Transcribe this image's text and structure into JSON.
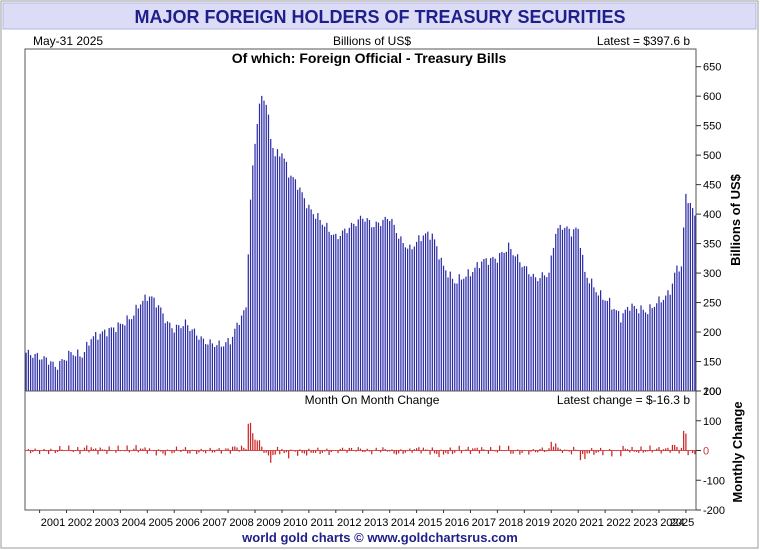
{
  "header": {
    "title": "MAJOR FOREIGN HOLDERS OF TREASURY SECURITIES",
    "date": "May-31  2025",
    "units": "Billions of US$",
    "latest": "Latest = $397.6 b"
  },
  "footer": {
    "credit": "world gold charts © www.goldchartsrus.com"
  },
  "colors": {
    "bars": "#2b2ba8",
    "change_bars": "#cc2222",
    "title_bg": "#dcdcf7",
    "title_text": "#1f1f8a",
    "zero_label": "#cc3333"
  },
  "chart_data": [
    {
      "type": "bar",
      "title": "Of which: Foreign Official - Treasury Bills",
      "ylabel": "Billions of US$",
      "ylim": [
        100,
        680
      ],
      "yticks": [
        100,
        150,
        200,
        250,
        300,
        350,
        400,
        450,
        500,
        550,
        600,
        650
      ],
      "x_start": "2000-07",
      "x_end": "2025-05",
      "year_labels": [
        "2001",
        "2002",
        "2003",
        "2004",
        "2005",
        "2006",
        "2007",
        "2008",
        "2009",
        "2010",
        "2011",
        "2012",
        "2013",
        "2014",
        "2015",
        "2016",
        "2017",
        "2018",
        "2019",
        "2020",
        "2021",
        "2022",
        "2023",
        "2024",
        "2025"
      ],
      "grid": false,
      "anchors": [
        [
          "2000-07",
          165
        ],
        [
          "2001-01",
          158
        ],
        [
          "2001-06",
          150
        ],
        [
          "2001-08",
          140
        ],
        [
          "2002-03",
          165
        ],
        [
          "2002-08",
          160
        ],
        [
          "2002-12",
          190
        ],
        [
          "2003-06",
          200
        ],
        [
          "2003-12",
          210
        ],
        [
          "2004-06",
          225
        ],
        [
          "2004-10",
          250
        ],
        [
          "2005-02",
          262
        ],
        [
          "2005-06",
          245
        ],
        [
          "2005-10",
          215
        ],
        [
          "2006-01",
          205
        ],
        [
          "2006-06",
          215
        ],
        [
          "2006-10",
          200
        ],
        [
          "2007-02",
          185
        ],
        [
          "2007-06",
          180
        ],
        [
          "2007-10",
          178
        ],
        [
          "2008-02",
          185
        ],
        [
          "2008-06",
          220
        ],
        [
          "2008-09",
          240
        ],
        [
          "2008-10",
          340
        ],
        [
          "2008-11",
          420
        ],
        [
          "2008-12",
          480
        ],
        [
          "2009-02",
          560
        ],
        [
          "2009-04",
          600
        ],
        [
          "2009-06",
          590
        ],
        [
          "2009-08",
          530
        ],
        [
          "2009-10",
          500
        ],
        [
          "2010-01",
          505
        ],
        [
          "2010-04",
          470
        ],
        [
          "2010-08",
          450
        ],
        [
          "2011-01",
          410
        ],
        [
          "2011-06",
          390
        ],
        [
          "2012-01",
          360
        ],
        [
          "2012-08",
          380
        ],
        [
          "2013-01",
          395
        ],
        [
          "2013-06",
          380
        ],
        [
          "2014-01",
          395
        ],
        [
          "2014-06",
          355
        ],
        [
          "2014-10",
          340
        ],
        [
          "2015-04",
          365
        ],
        [
          "2015-08",
          365
        ],
        [
          "2016-01",
          310
        ],
        [
          "2016-06",
          285
        ],
        [
          "2017-01",
          300
        ],
        [
          "2017-06",
          320
        ],
        [
          "2018-01",
          325
        ],
        [
          "2018-06",
          345
        ],
        [
          "2018-10",
          325
        ],
        [
          "2019-01",
          310
        ],
        [
          "2019-06",
          290
        ],
        [
          "2019-12",
          300
        ],
        [
          "2020-03",
          370
        ],
        [
          "2020-06",
          380
        ],
        [
          "2020-10",
          370
        ],
        [
          "2021-01",
          375
        ],
        [
          "2021-04",
          300
        ],
        [
          "2021-10",
          265
        ],
        [
          "2022-03",
          250
        ],
        [
          "2022-08",
          225
        ],
        [
          "2022-12",
          245
        ],
        [
          "2023-03",
          240
        ],
        [
          "2023-08",
          235
        ],
        [
          "2023-12",
          250
        ],
        [
          "2024-04",
          260
        ],
        [
          "2024-06",
          270
        ],
        [
          "2024-09",
          310
        ],
        [
          "2024-11",
          310
        ],
        [
          "2025-01",
          435
        ],
        [
          "2025-03",
          415
        ],
        [
          "2025-05",
          397.6
        ]
      ]
    },
    {
      "type": "bar",
      "title": "Month On Month Change",
      "ylabel": "Monthly Change",
      "latest": "Latest change = $-16.3 b",
      "ylim": [
        -200,
        200
      ],
      "yticks": [
        -200,
        -100,
        0,
        100,
        200
      ],
      "derived_from": "month-over-month difference of the Treasury Bills series"
    }
  ]
}
